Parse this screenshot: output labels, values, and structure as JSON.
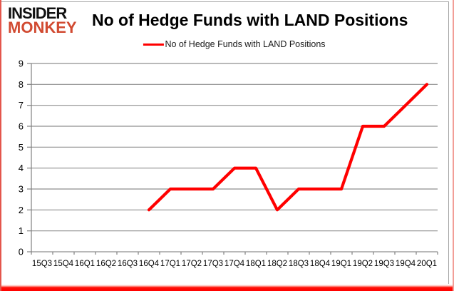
{
  "logo": {
    "line1": "INSIDER",
    "line2": "MONKEY"
  },
  "header": {
    "title": "No of Hedge Funds with LAND Positions"
  },
  "legend": {
    "label": "No of Hedge Funds with LAND Positions",
    "color": "#ff0000"
  },
  "colors": {
    "series_line": "#ff0000",
    "gridline": "#8f8f8f",
    "axis": "#808080",
    "logo_monkey": "#d14a31",
    "border_bottom": "#ff0000",
    "border_sides": "#e4564c"
  },
  "chart_data": {
    "type": "line",
    "title": "No of Hedge Funds with LAND Positions",
    "categories": [
      "15Q3",
      "15Q4",
      "16Q1",
      "16Q2",
      "16Q3",
      "16Q4",
      "17Q1",
      "17Q2",
      "17Q3",
      "17Q4",
      "18Q1",
      "18Q2",
      "18Q3",
      "18Q4",
      "19Q1",
      "19Q2",
      "19Q3",
      "19Q4",
      "20Q1"
    ],
    "series": [
      {
        "name": "No of Hedge Funds with LAND Positions",
        "color": "#ff0000",
        "values": [
          null,
          null,
          null,
          null,
          null,
          2,
          3,
          3,
          3,
          4,
          4,
          2,
          3,
          3,
          3,
          6,
          6,
          7,
          8
        ]
      }
    ],
    "xlabel": "",
    "ylabel": "",
    "ylim": [
      0,
      9
    ],
    "ytick_interval": 1,
    "grid": true,
    "legend_position": "top-center"
  }
}
